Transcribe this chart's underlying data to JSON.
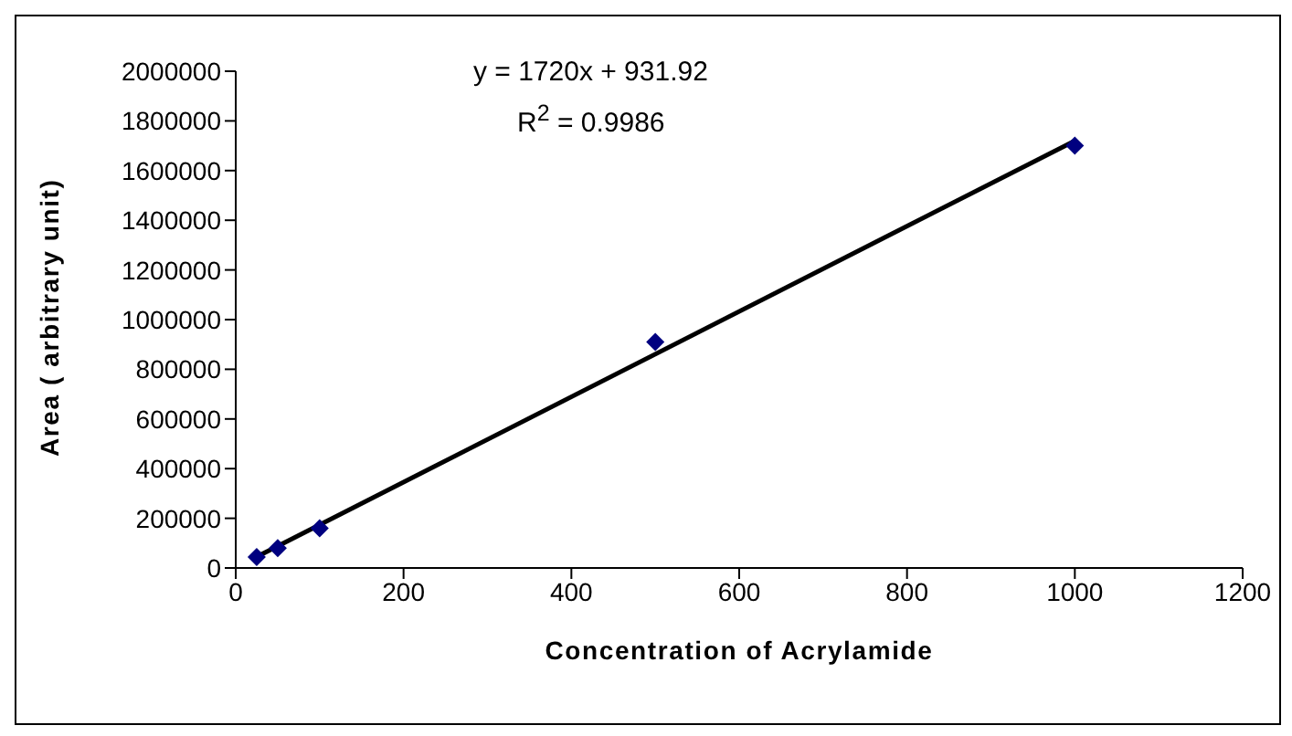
{
  "chart_data": {
    "type": "scatter",
    "xlabel": "Concentration of Acrylamide",
    "ylabel": "Area ( arbitrary unit)",
    "x": [
      25,
      50,
      100,
      500,
      1000
    ],
    "series": [
      {
        "color": "#000080",
        "values": [
          44000,
          80000,
          160000,
          910000,
          1700000
        ],
        "marker": "diamond"
      },
      {
        "type": "line",
        "color": "#000000",
        "x": [
          25,
          1000
        ],
        "values": [
          45000,
          1720000
        ],
        "marker": "none",
        "line_style": "solid"
      }
    ],
    "annotations": [
      "y = 1720x + 931.92",
      "R$^{2}$ = 0.9986"
    ],
    "xlim": [
      0,
      1200
    ],
    "xticks": [
      0,
      200,
      400,
      600,
      800,
      1000,
      1200
    ],
    "ylim": [
      0,
      2000000
    ],
    "yticks": [
      0,
      200000,
      400000,
      600000,
      800000,
      1000000,
      1200000,
      1400000,
      1600000,
      1800000,
      2000000
    ],
    "grid": false,
    "legend": false
  }
}
